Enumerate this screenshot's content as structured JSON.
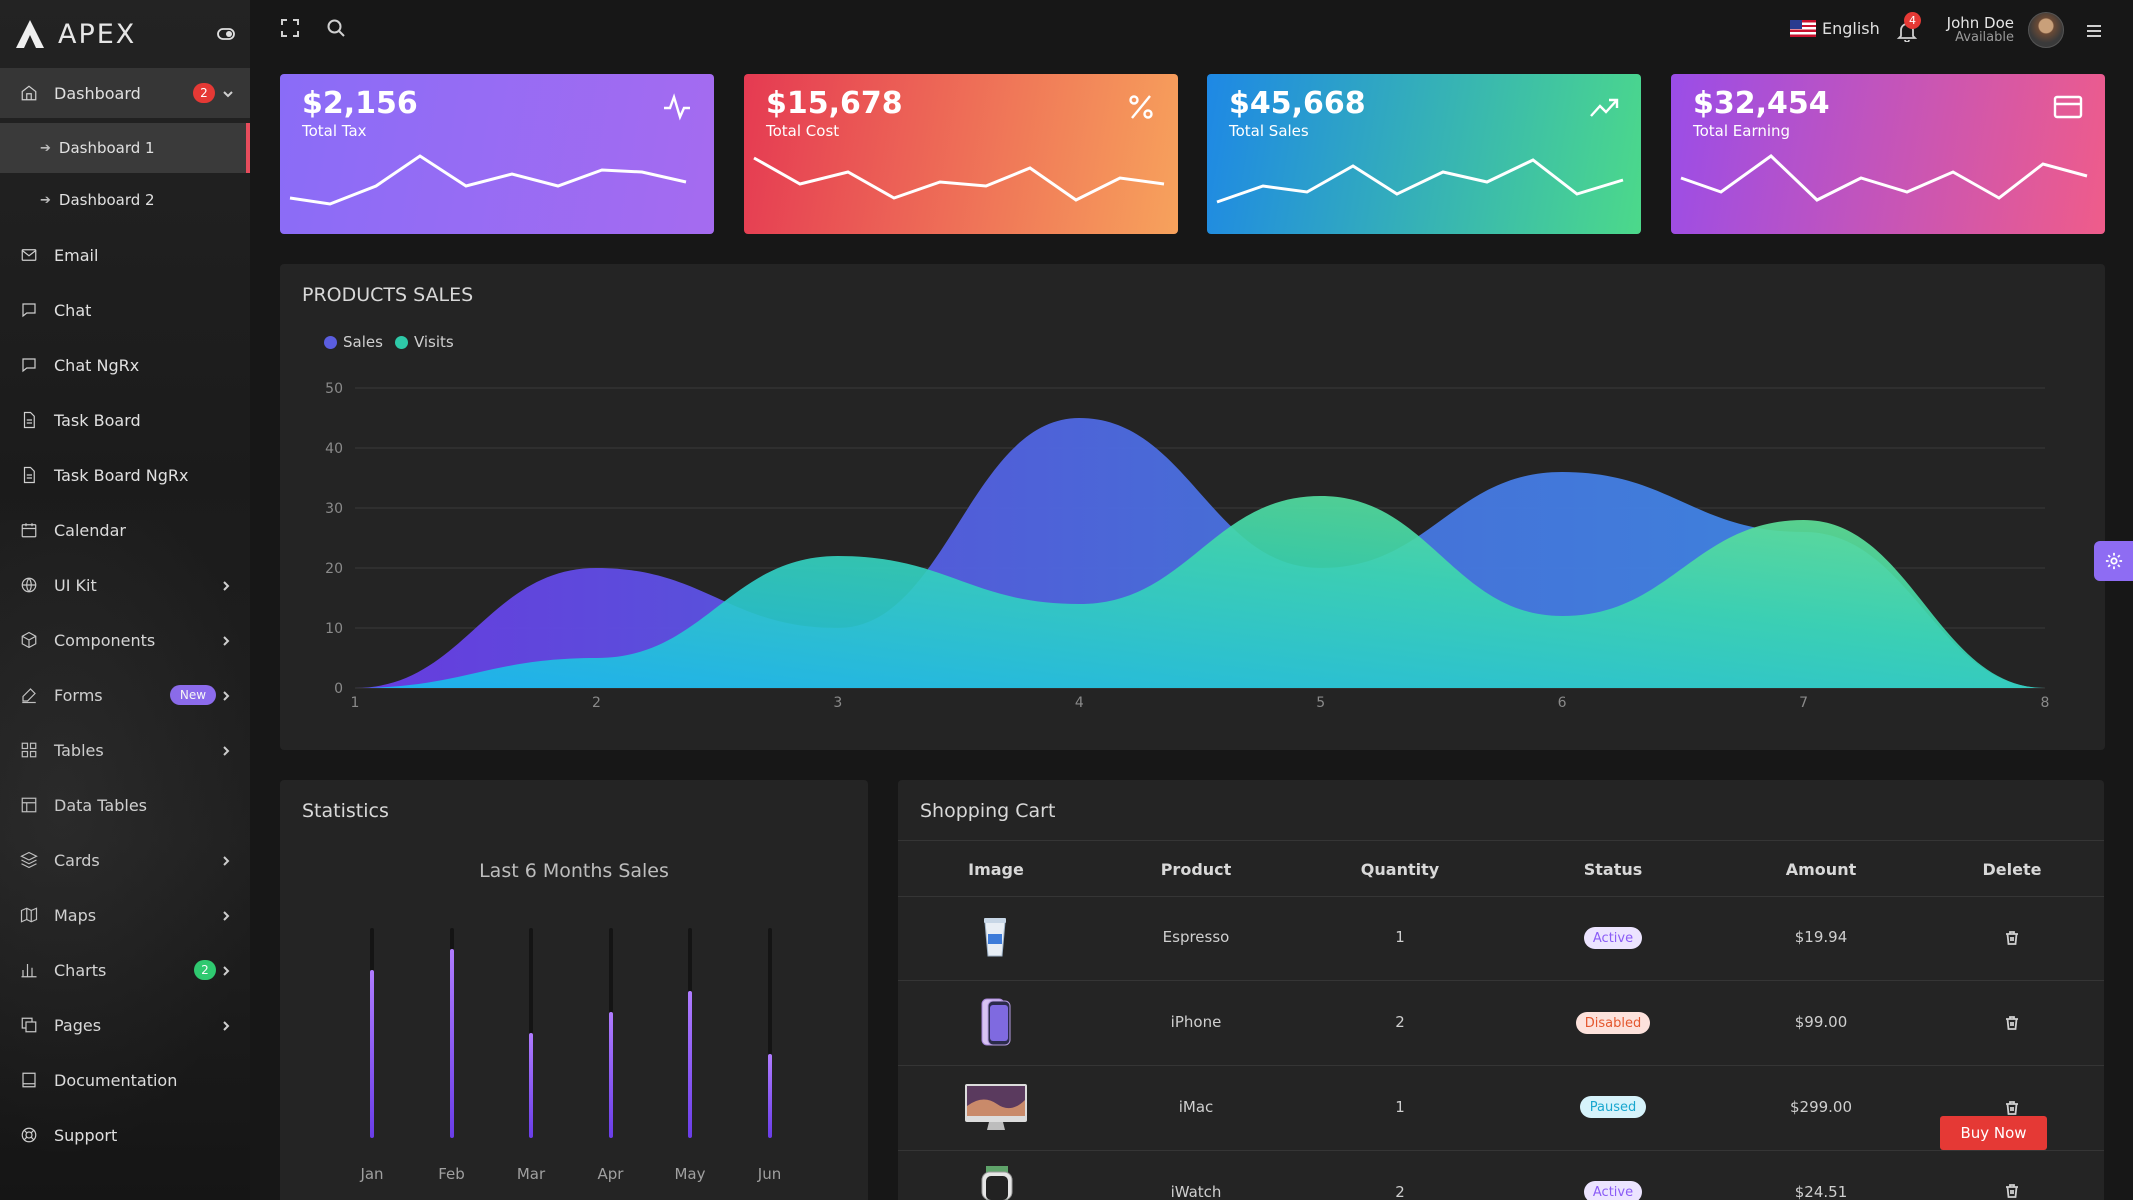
{
  "app": {
    "name": "APEX"
  },
  "sidebar": {
    "items": [
      {
        "label": "Dashboard",
        "icon": "home-icon",
        "badge": "2",
        "badge_color": "#e53935",
        "expanded": true
      },
      {
        "label": "Email",
        "icon": "mail-icon"
      },
      {
        "label": "Chat",
        "icon": "chat-icon"
      },
      {
        "label": "Chat NgRx",
        "icon": "chat-icon"
      },
      {
        "label": "Task Board",
        "icon": "file-icon"
      },
      {
        "label": "Task Board NgRx",
        "icon": "file-icon"
      },
      {
        "label": "Calendar",
        "icon": "calendar-icon"
      },
      {
        "label": "UI Kit",
        "icon": "globe-icon",
        "has_children": true
      },
      {
        "label": "Components",
        "icon": "box-icon",
        "has_children": true
      },
      {
        "label": "Forms",
        "icon": "edit-icon",
        "badge": "New",
        "badge_color": "#8e6cf3",
        "has_children": true
      },
      {
        "label": "Tables",
        "icon": "grid-icon",
        "has_children": true
      },
      {
        "label": "Data Tables",
        "icon": "table-icon"
      },
      {
        "label": "Cards",
        "icon": "layers-icon",
        "has_children": true
      },
      {
        "label": "Maps",
        "icon": "map-icon",
        "has_children": true
      },
      {
        "label": "Charts",
        "icon": "bar-chart-icon",
        "badge": "2",
        "badge_color": "#2ecc71",
        "has_children": true
      },
      {
        "label": "Pages",
        "icon": "copy-icon",
        "has_children": true
      },
      {
        "label": "Documentation",
        "icon": "book-icon"
      },
      {
        "label": "Support",
        "icon": "life-buoy-icon"
      }
    ],
    "subitems": [
      {
        "label": "Dashboard 1",
        "active": true
      },
      {
        "label": "Dashboard 2",
        "active": false
      }
    ]
  },
  "topbar": {
    "language": "English",
    "notifications": "4",
    "user_name": "John Doe",
    "user_status": "Available"
  },
  "stats": [
    {
      "value": "$2,156",
      "label": "Total Tax",
      "icon": "activity-icon",
      "gradient": [
        "#8a6cf7",
        "#a56bf0"
      ]
    },
    {
      "value": "$15,678",
      "label": "Total Cost",
      "icon": "percent-icon",
      "gradient": [
        "#e53a52",
        "#f7a25c"
      ]
    },
    {
      "value": "$45,668",
      "label": "Total Sales",
      "icon": "trending-up-icon",
      "gradient": [
        "#1e88e5",
        "#4cd98a"
      ]
    },
    {
      "value": "$32,454",
      "label": "Total Earning",
      "icon": "credit-card-icon",
      "gradient": [
        "#9a4de8",
        "#ef5c8a"
      ]
    }
  ],
  "products_sales": {
    "title": "PRODUCTS SALES",
    "chart_data": {
      "type": "area",
      "x": [
        1,
        2,
        3,
        4,
        5,
        6,
        7,
        8
      ],
      "ylim": [
        0,
        50
      ],
      "yticks": [
        0,
        10,
        20,
        30,
        40,
        50
      ],
      "series": [
        {
          "name": "Sales",
          "color": "#5b5ee0",
          "values": [
            0,
            20,
            10,
            45,
            20,
            36,
            26,
            0
          ]
        },
        {
          "name": "Visits",
          "color": "#2ec9a8",
          "values": [
            0,
            5,
            22,
            14,
            32,
            12,
            28,
            0
          ]
        }
      ],
      "legend": "top-left",
      "grid": true
    }
  },
  "statistics": {
    "title": "Statistics",
    "chart_data": {
      "type": "bar",
      "title": "Last 6 Months Sales",
      "categories": [
        "Jan",
        "Feb",
        "Mar",
        "Apr",
        "May",
        "Jun"
      ],
      "values": [
        80,
        90,
        50,
        60,
        70,
        40
      ],
      "ylim": [
        0,
        100
      ]
    }
  },
  "cart": {
    "title": "Shopping Cart",
    "headers": [
      "Image",
      "Product",
      "Quantity",
      "Status",
      "Amount",
      "Delete"
    ],
    "rows": [
      {
        "image": "coffee-cup",
        "product": "Espresso",
        "quantity": "1",
        "status": "Active",
        "amount": "$19.94"
      },
      {
        "image": "phone",
        "product": "iPhone",
        "quantity": "2",
        "status": "Disabled",
        "amount": "$99.00"
      },
      {
        "image": "monitor",
        "product": "iMac",
        "quantity": "1",
        "status": "Paused",
        "amount": "$299.00"
      },
      {
        "image": "watch",
        "product": "iWatch",
        "quantity": "2",
        "status": "Active",
        "amount": "$24.51"
      }
    ],
    "buy_now": "Buy Now"
  }
}
